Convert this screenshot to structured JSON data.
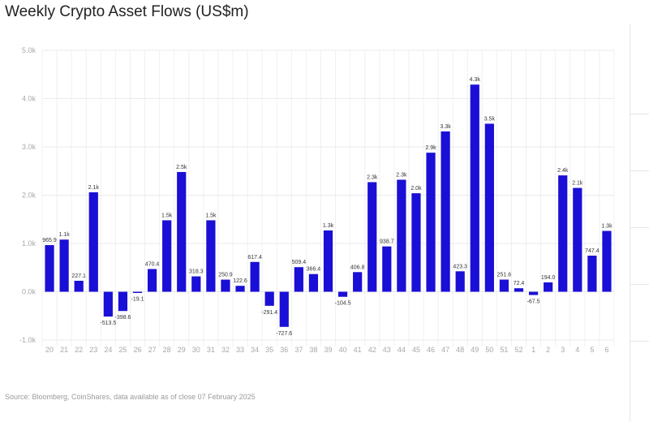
{
  "chart_data": {
    "type": "bar",
    "title": "Weekly Crypto Asset Flows (US$m)",
    "source": "Source: Bloomberg, CoinShares, data available as of close 07 February 2025",
    "xlabel": "",
    "ylabel": "",
    "ylim": [
      -1000,
      5000
    ],
    "yticks": [
      -1000,
      0,
      1000,
      2000,
      3000,
      4000,
      5000
    ],
    "ytick_labels": [
      "-1.0k",
      "0.0k",
      "1.0k",
      "2.0k",
      "3.0k",
      "4.0k",
      "5.0k"
    ],
    "grid": true,
    "bar_color": "#1a0fd6",
    "categories": [
      "20",
      "21",
      "22",
      "23",
      "24",
      "25",
      "26",
      "27",
      "28",
      "29",
      "30",
      "31",
      "32",
      "33",
      "34",
      "35",
      "36",
      "37",
      "38",
      "39",
      "40",
      "41",
      "42",
      "43",
      "44",
      "45",
      "46",
      "47",
      "48",
      "49",
      "50",
      "51",
      "52",
      "1",
      "2",
      "3",
      "4",
      "5",
      "6"
    ],
    "values": [
      965.9,
      1080,
      227.1,
      2060,
      -513.5,
      -398.6,
      -19.1,
      470.4,
      1480,
      2480,
      318.3,
      1480,
      250.9,
      122.6,
      617.4,
      -291.4,
      -727.6,
      509.4,
      366.4,
      1270,
      -104.5,
      406.8,
      2270,
      938.7,
      2320,
      2040,
      2880,
      3320,
      423.3,
      4290,
      3480,
      251.6,
      72.4,
      -67.5,
      194.0,
      2410,
      2150,
      747.4,
      1260
    ],
    "labels": [
      "965.9",
      "1.1k",
      "227.1",
      "2.1k",
      "-513.5",
      "-398.6",
      "-19.1",
      "470.4",
      "1.5k",
      "2.5k",
      "318.3",
      "1.5k",
      "250.9",
      "122.6",
      "617.4",
      "-291.4",
      "-727.6",
      "509.4",
      "366.4",
      "1.3k",
      "-104.5",
      "406.8",
      "2.3k",
      "938.7",
      "2.3k",
      "2.0k",
      "2.9k",
      "3.3k",
      "423.3",
      "4.3k",
      "3.5k",
      "251.6",
      "72.4",
      "-67.5",
      "194.0",
      "2.4k",
      "2.1k",
      "747.4",
      "1.3k"
    ]
  }
}
